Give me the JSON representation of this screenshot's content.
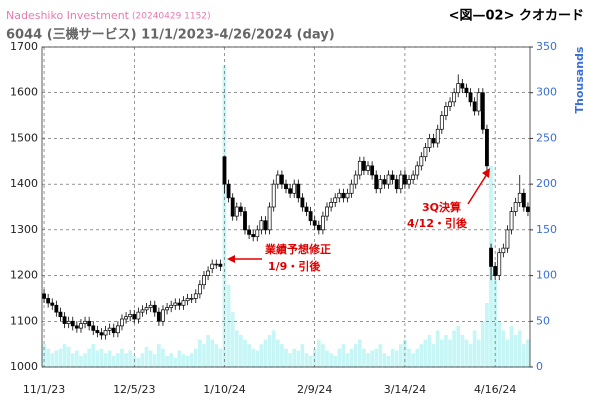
{
  "chart_data": {
    "type": "candlestick",
    "source": "Nadeshiko Investment",
    "timestamp": "(20240429 1152)",
    "figure_label": "<図—02> クオカード",
    "title": "6044 (三機サービス) 11/1/2023-4/26/2024 (day)",
    "y2_label": "Thousands",
    "categories": [
      "11/1/23",
      null,
      null,
      null,
      null,
      null,
      null,
      null,
      null,
      null,
      null,
      null,
      null,
      null,
      null,
      null,
      null,
      null,
      null,
      null,
      null,
      null,
      "12/5/23",
      null,
      null,
      null,
      null,
      null,
      null,
      null,
      null,
      null,
      null,
      null,
      null,
      null,
      null,
      null,
      null,
      null,
      null,
      null,
      null,
      null,
      "1/10/24",
      null,
      null,
      null,
      null,
      null,
      null,
      null,
      null,
      null,
      null,
      null,
      null,
      null,
      null,
      null,
      null,
      null,
      null,
      null,
      null,
      null,
      "2/9/24",
      null,
      null,
      null,
      null,
      null,
      null,
      null,
      null,
      null,
      null,
      null,
      null,
      null,
      null,
      null,
      null,
      null,
      null,
      null,
      null,
      null,
      "3/14/24",
      null,
      null,
      null,
      null,
      null,
      null,
      null,
      null,
      null,
      null,
      null,
      null,
      null,
      null,
      null,
      null,
      null,
      null,
      null,
      null,
      null,
      "4/16/24",
      null,
      null,
      null,
      null,
      null,
      null,
      null,
      null
    ],
    "ohlc": {
      "open": [
        1160,
        1150,
        1140,
        1135,
        1120,
        1110,
        1095,
        1100,
        1090,
        1085,
        1095,
        1100,
        1090,
        1080,
        1075,
        1070,
        1080,
        1085,
        1075,
        1090,
        1105,
        1110,
        1115,
        1105,
        1120,
        1125,
        1130,
        1135,
        1120,
        1100,
        1125,
        1130,
        1135,
        1140,
        1135,
        1145,
        1150,
        1150,
        1160,
        1180,
        1200,
        1215,
        1225,
        1225,
        1460,
        1400,
        1370,
        1330,
        1350,
        1340,
        1300,
        1290,
        1285,
        1300,
        1320,
        1300,
        1350,
        1400,
        1420,
        1400,
        1390,
        1380,
        1400,
        1370,
        1350,
        1340,
        1320,
        1310,
        1300,
        1330,
        1350,
        1360,
        1370,
        1380,
        1370,
        1380,
        1400,
        1420,
        1450,
        1430,
        1440,
        1420,
        1390,
        1410,
        1400,
        1420,
        1410,
        1390,
        1420,
        1400,
        1410,
        1420,
        1440,
        1460,
        1480,
        1500,
        1490,
        1520,
        1550,
        1570,
        1580,
        1600,
        1620,
        1610,
        1600,
        1580,
        1560,
        1600,
        1520,
        1260,
        1220,
        1200,
        1250,
        1260,
        1300,
        1340,
        1360,
        1380,
        1350
      ],
      "high": [
        1170,
        1160,
        1150,
        1145,
        1130,
        1120,
        1110,
        1110,
        1100,
        1105,
        1110,
        1110,
        1100,
        1090,
        1085,
        1090,
        1095,
        1095,
        1100,
        1115,
        1120,
        1125,
        1125,
        1130,
        1135,
        1140,
        1145,
        1145,
        1130,
        1135,
        1140,
        1145,
        1150,
        1150,
        1155,
        1160,
        1160,
        1170,
        1190,
        1210,
        1220,
        1235,
        1235,
        1235,
        1460,
        1410,
        1380,
        1360,
        1360,
        1350,
        1310,
        1300,
        1310,
        1330,
        1330,
        1360,
        1410,
        1430,
        1430,
        1410,
        1400,
        1410,
        1410,
        1380,
        1360,
        1350,
        1330,
        1320,
        1340,
        1360,
        1370,
        1380,
        1390,
        1390,
        1390,
        1410,
        1430,
        1460,
        1460,
        1450,
        1450,
        1430,
        1420,
        1420,
        1430,
        1430,
        1420,
        1430,
        1430,
        1420,
        1430,
        1450,
        1470,
        1490,
        1510,
        1510,
        1530,
        1560,
        1580,
        1590,
        1610,
        1640,
        1630,
        1620,
        1610,
        1590,
        1610,
        1610,
        1530,
        1270,
        1230,
        1260,
        1270,
        1310,
        1350,
        1370,
        1420,
        1390,
        1360
      ],
      "low": [
        1140,
        1130,
        1125,
        1110,
        1100,
        1085,
        1085,
        1080,
        1075,
        1075,
        1085,
        1080,
        1070,
        1065,
        1060,
        1060,
        1070,
        1065,
        1065,
        1080,
        1095,
        1100,
        1095,
        1095,
        1110,
        1115,
        1120,
        1110,
        1090,
        1090,
        1115,
        1120,
        1125,
        1125,
        1125,
        1135,
        1140,
        1140,
        1150,
        1170,
        1190,
        1205,
        1215,
        1210,
        1380,
        1360,
        1320,
        1320,
        1330,
        1290,
        1280,
        1275,
        1275,
        1290,
        1290,
        1290,
        1340,
        1390,
        1390,
        1380,
        1370,
        1370,
        1360,
        1340,
        1330,
        1310,
        1300,
        1290,
        1290,
        1320,
        1340,
        1350,
        1360,
        1360,
        1360,
        1370,
        1390,
        1410,
        1420,
        1420,
        1410,
        1380,
        1380,
        1390,
        1390,
        1400,
        1380,
        1380,
        1390,
        1390,
        1400,
        1410,
        1430,
        1450,
        1470,
        1480,
        1480,
        1510,
        1540,
        1560,
        1570,
        1590,
        1600,
        1590,
        1570,
        1550,
        1550,
        1510,
        1430,
        1190,
        1190,
        1190,
        1240,
        1250,
        1290,
        1330,
        1350,
        1340,
        1330
      ],
      "close": [
        1150,
        1140,
        1135,
        1120,
        1110,
        1095,
        1100,
        1090,
        1085,
        1095,
        1100,
        1090,
        1080,
        1075,
        1070,
        1080,
        1085,
        1075,
        1090,
        1105,
        1110,
        1115,
        1105,
        1120,
        1125,
        1130,
        1135,
        1120,
        1100,
        1125,
        1130,
        1135,
        1140,
        1135,
        1145,
        1150,
        1150,
        1160,
        1180,
        1200,
        1210,
        1225,
        1225,
        1220,
        1400,
        1370,
        1330,
        1350,
        1340,
        1300,
        1290,
        1285,
        1300,
        1320,
        1300,
        1350,
        1400,
        1420,
        1400,
        1390,
        1380,
        1400,
        1370,
        1350,
        1340,
        1320,
        1310,
        1300,
        1330,
        1350,
        1360,
        1370,
        1380,
        1370,
        1380,
        1400,
        1420,
        1450,
        1430,
        1440,
        1420,
        1390,
        1410,
        1400,
        1420,
        1410,
        1390,
        1420,
        1400,
        1410,
        1420,
        1440,
        1460,
        1480,
        1500,
        1490,
        1520,
        1550,
        1570,
        1580,
        1600,
        1620,
        1610,
        1600,
        1580,
        1560,
        1600,
        1520,
        1440,
        1220,
        1200,
        1250,
        1260,
        1300,
        1340,
        1360,
        1380,
        1350,
        1340
      ],
      "up_color": "#ffffff",
      "down_color": "#000000",
      "edge_color": "#000000"
    },
    "volume": {
      "axis": "y2",
      "color": "#c6f6f6",
      "values": [
        25,
        20,
        15,
        18,
        20,
        25,
        22,
        15,
        18,
        12,
        15,
        20,
        25,
        18,
        20,
        15,
        18,
        12,
        15,
        20,
        15,
        18,
        12,
        10,
        15,
        22,
        18,
        14,
        25,
        20,
        12,
        15,
        10,
        18,
        14,
        12,
        15,
        20,
        30,
        25,
        35,
        30,
        25,
        20,
        330,
        90,
        60,
        40,
        35,
        30,
        25,
        20,
        18,
        25,
        30,
        35,
        40,
        30,
        25,
        20,
        15,
        20,
        18,
        25,
        15,
        12,
        20,
        30,
        25,
        18,
        15,
        12,
        20,
        25,
        15,
        20,
        25,
        30,
        20,
        15,
        18,
        20,
        25,
        15,
        12,
        20,
        18,
        25,
        30,
        20,
        15,
        20,
        25,
        30,
        35,
        25,
        40,
        30,
        35,
        30,
        40,
        45,
        35,
        30,
        25,
        40,
        30,
        50,
        70,
        220,
        95,
        50,
        40,
        30,
        45,
        35,
        40,
        25,
        30
      ]
    },
    "ylim": [
      1000,
      1700
    ],
    "yticks": [
      1000,
      1100,
      1200,
      1300,
      1400,
      1500,
      1600,
      1700
    ],
    "y2lim": [
      0,
      350
    ],
    "y2ticks": [
      0,
      50,
      100,
      150,
      200,
      250,
      300,
      350
    ],
    "grid": true,
    "annotations": [
      {
        "lines": [
          "業績予想修正",
          "1/9・引後"
        ],
        "color": "#e00000"
      },
      {
        "lines": [
          "3Q決算",
          "4/12・引後"
        ],
        "color": "#e00000"
      }
    ]
  }
}
